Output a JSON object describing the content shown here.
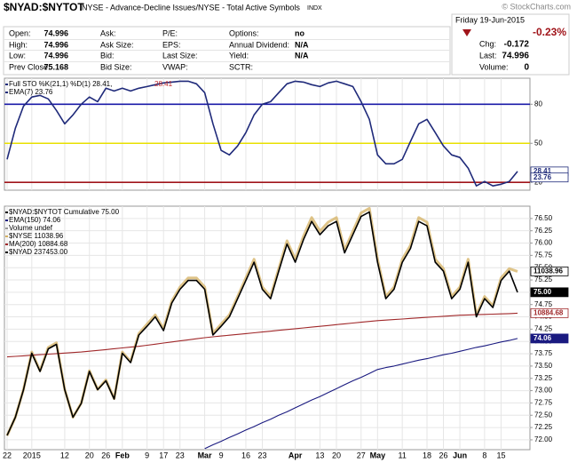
{
  "header": {
    "symbol": "$NYAD:$NYTOT",
    "description": "NYSE - Advance-Decline Issues/NYSE - Total Active Symbols",
    "exchange": "INDX",
    "watermark": "© StockCharts.com",
    "quote": [
      [
        {
          "label": "Open:",
          "value": 74.996
        },
        {
          "label": "Ask:"
        },
        {
          "label": "P/E:"
        },
        {
          "label": "Options:",
          "value": "no"
        }
      ],
      [
        {
          "label": "High:",
          "value": 74.996
        },
        {
          "label": "Ask Size:"
        },
        {
          "label": "EPS:"
        },
        {
          "label": "Annual Dividend:",
          "value": "N/A"
        }
      ],
      [
        {
          "label": "Low:",
          "value": 74.996
        },
        {
          "label": "Bid:"
        },
        {
          "label": "Last Size:"
        },
        {
          "label": "Yield:",
          "value": "N/A"
        }
      ],
      [
        {
          "label": "Prev Close:",
          "value": 75.168
        },
        {
          "label": "Bid Size:"
        },
        {
          "label": "VWAP:"
        },
        {
          "label": "SCTR:"
        }
      ]
    ],
    "date": "Friday 19-Jun-2015",
    "change_pct": "-0.23%",
    "stats": [
      {
        "label": "Chg:",
        "value": -0.172
      },
      {
        "label": "Last:",
        "value": 74.996
      },
      {
        "label": "Volume:",
        "value": 0
      }
    ]
  },
  "chart_data": [
    {
      "type": "line",
      "legend": [
        {
          "text": "Full STO %K(21,1) %D(1) 28.41,",
          "color": "#1f2a7a"
        },
        {
          "text": "28.41",
          "color": "#c0282a"
        },
        {
          "text": "EMA(7) 23.76",
          "color": "#1f2a7a"
        }
      ],
      "ylim": [
        14,
        100
      ],
      "yticks": [
        20,
        50,
        80
      ],
      "hlines": [
        {
          "value": 80,
          "color": "#1a1aa8"
        },
        {
          "value": 50,
          "color": "#e8e000"
        },
        {
          "value": 20,
          "color": "#a0141a"
        }
      ],
      "series": [
        {
          "color": "#1f2a7a",
          "values": [
            37.7,
            61.6,
            78.6,
            85.5,
            86.8,
            84.1,
            75.2,
            65,
            71.8,
            80,
            85.5,
            82,
            92.3,
            90.2,
            92.3,
            90.2,
            92.3,
            93.6,
            95,
            96.4,
            97,
            97.7,
            97.7,
            95.7,
            88.9,
            65,
            44.6,
            41.1,
            48,
            58.2,
            71.8,
            80,
            82,
            88.9,
            95.7,
            97.7,
            97,
            95,
            93.6,
            96.4,
            97.7,
            95.7,
            93.6,
            82,
            68.4,
            41.1,
            34.3,
            34.3,
            37.7,
            51.4,
            65,
            68.4,
            58.2,
            48,
            41.1,
            39.1,
            30.9,
            17.3,
            20.7,
            17.3,
            18.6,
            20.7,
            28.41
          ]
        }
      ],
      "markers": [
        {
          "value": 28.41,
          "color": "#1f2a7a"
        },
        {
          "value": 23.76,
          "color": "#1f2a7a"
        }
      ]
    },
    {
      "type": "line",
      "legend": [
        {
          "text": "$NYAD:$NYTOT Cumulative 75.00",
          "color": "#000000"
        },
        {
          "text": "EMA(150) 74.06",
          "color": "#1a1a80"
        },
        {
          "text": "Volume undef",
          "color": "#999999"
        },
        {
          "text": "$NYSE 11038.96",
          "color": "#d4b060"
        },
        {
          "text": "MA(200) 10884.68",
          "color": "#a0282a"
        },
        {
          "text": "$NYAD 237453.00",
          "color": "#000000"
        }
      ],
      "categories": [
        "22",
        null,
        null,
        "2015",
        null,
        null,
        null,
        "12",
        null,
        null,
        "20",
        null,
        "26",
        null,
        "Feb",
        null,
        null,
        "9",
        null,
        "17",
        null,
        "23",
        null,
        null,
        "Mar",
        null,
        "9",
        null,
        null,
        "16",
        null,
        "23",
        null,
        null,
        null,
        "Apr",
        null,
        null,
        "13",
        null,
        "20",
        null,
        null,
        "27",
        null,
        "May",
        null,
        null,
        "11",
        null,
        null,
        "18",
        null,
        "26",
        null,
        "Jun",
        null,
        null,
        "8",
        null,
        "15",
        null,
        null
      ],
      "ylim": [
        71.8,
        76.75
      ],
      "y2lim": [
        10380,
        11280
      ],
      "grid": true,
      "yticks": [
        {
          "value": 72,
          "label": "72.00"
        },
        72.25,
        {
          "value": 72.5,
          "label": "72.50"
        },
        72.75,
        {
          "value": 73,
          "label": "73.00"
        },
        73.25,
        {
          "value": 73.5,
          "label": "73.50"
        },
        73.75,
        {
          "value": 74,
          "label": "74.00"
        },
        74.25,
        {
          "value": 74.5,
          "label": "74.50"
        },
        74.75,
        {
          "value": 75,
          "label": "75.00"
        },
        75.25,
        {
          "value": 75.5,
          "label": "75.50"
        },
        75.75,
        {
          "value": 76,
          "label": "76.00"
        },
        76.25,
        {
          "value": 76.5,
          "label": "76.50"
        }
      ],
      "series": [
        {
          "color": "#d4b060",
          "axis": "y2",
          "values": [
            10432,
            10500,
            10603,
            10741,
            10672,
            10758,
            10775,
            10603,
            10500,
            10552,
            10672,
            10603,
            10638,
            10569,
            10741,
            10706,
            10809,
            10844,
            10878,
            10827,
            10929,
            10981,
            11015,
            11015,
            10981,
            10809,
            10844,
            10878,
            10946,
            11015,
            11084,
            10981,
            10946,
            11049,
            11152,
            11084,
            11169,
            11238,
            11187,
            11221,
            11238,
            11118,
            11187,
            11255,
            11272,
            11084,
            10946,
            10981,
            11084,
            11135,
            11238,
            11221,
            11084,
            11049,
            10946,
            10981,
            11084,
            10878,
            10946,
            10912,
            11015,
            11049,
            11038.96
          ]
        },
        {
          "color": "#a0282a",
          "axis": "y2",
          "values": [
            10723,
            10725,
            10727,
            10729,
            10731,
            10733,
            10735,
            10737,
            10739,
            10741,
            10744,
            10747,
            10750,
            10753,
            10756,
            10759,
            10762,
            10766,
            10770,
            10774,
            10778,
            10782,
            10786,
            10790,
            10794,
            10797,
            10800,
            10803,
            10806,
            10809,
            10812,
            10815,
            10818,
            10821,
            10824,
            10827,
            10830,
            10833,
            10836,
            10839,
            10842,
            10845,
            10848,
            10851,
            10854,
            10857,
            10859,
            10861,
            10863,
            10865,
            10867,
            10869,
            10871,
            10873,
            10875,
            10877,
            10878,
            10879,
            10880,
            10881,
            10882,
            10883,
            10884.68
          ]
        },
        {
          "color": "#1a1a80",
          "values": [
            null,
            null,
            null,
            null,
            null,
            null,
            null,
            null,
            null,
            null,
            null,
            null,
            null,
            null,
            null,
            null,
            null,
            null,
            null,
            null,
            null,
            null,
            null,
            null,
            71.82,
            71.9,
            71.97,
            72.05,
            72.12,
            72.2,
            72.27,
            72.35,
            72.42,
            72.5,
            72.57,
            72.65,
            72.73,
            72.81,
            72.88,
            72.96,
            73.04,
            73.12,
            73.2,
            73.27,
            73.35,
            73.43,
            73.47,
            73.5,
            73.54,
            73.58,
            73.62,
            73.65,
            73.69,
            73.73,
            73.76,
            73.8,
            73.84,
            73.88,
            73.91,
            73.95,
            73.99,
            74.02,
            74.06
          ]
        },
        {
          "color": "#000000",
          "values": [
            72.09,
            72.46,
            73.02,
            73.76,
            73.39,
            73.85,
            73.94,
            73.02,
            72.46,
            72.74,
            73.39,
            73.02,
            73.2,
            72.83,
            73.76,
            73.57,
            74.13,
            74.31,
            74.5,
            74.22,
            74.78,
            75.06,
            75.24,
            75.24,
            75.06,
            74.13,
            74.31,
            74.5,
            74.87,
            75.24,
            75.61,
            75.06,
            74.87,
            75.43,
            75.98,
            75.61,
            76.07,
            76.44,
            76.17,
            76.35,
            76.44,
            75.8,
            76.17,
            76.54,
            76.63,
            75.61,
            74.87,
            75.06,
            75.61,
            75.89,
            76.44,
            76.35,
            75.61,
            75.43,
            74.87,
            75.06,
            75.61,
            74.5,
            74.87,
            74.69,
            75.24,
            75.43,
            75
          ]
        }
      ],
      "markers": [
        {
          "value": 11038.96,
          "axis": "y2",
          "color": "#000000"
        },
        {
          "value": 75,
          "label": "75.00",
          "color": "#000000"
        },
        {
          "value": 10884.68,
          "axis": "y2",
          "color": "#a0282a"
        },
        {
          "value": 74.06,
          "color": "#1a1a80"
        }
      ]
    }
  ]
}
